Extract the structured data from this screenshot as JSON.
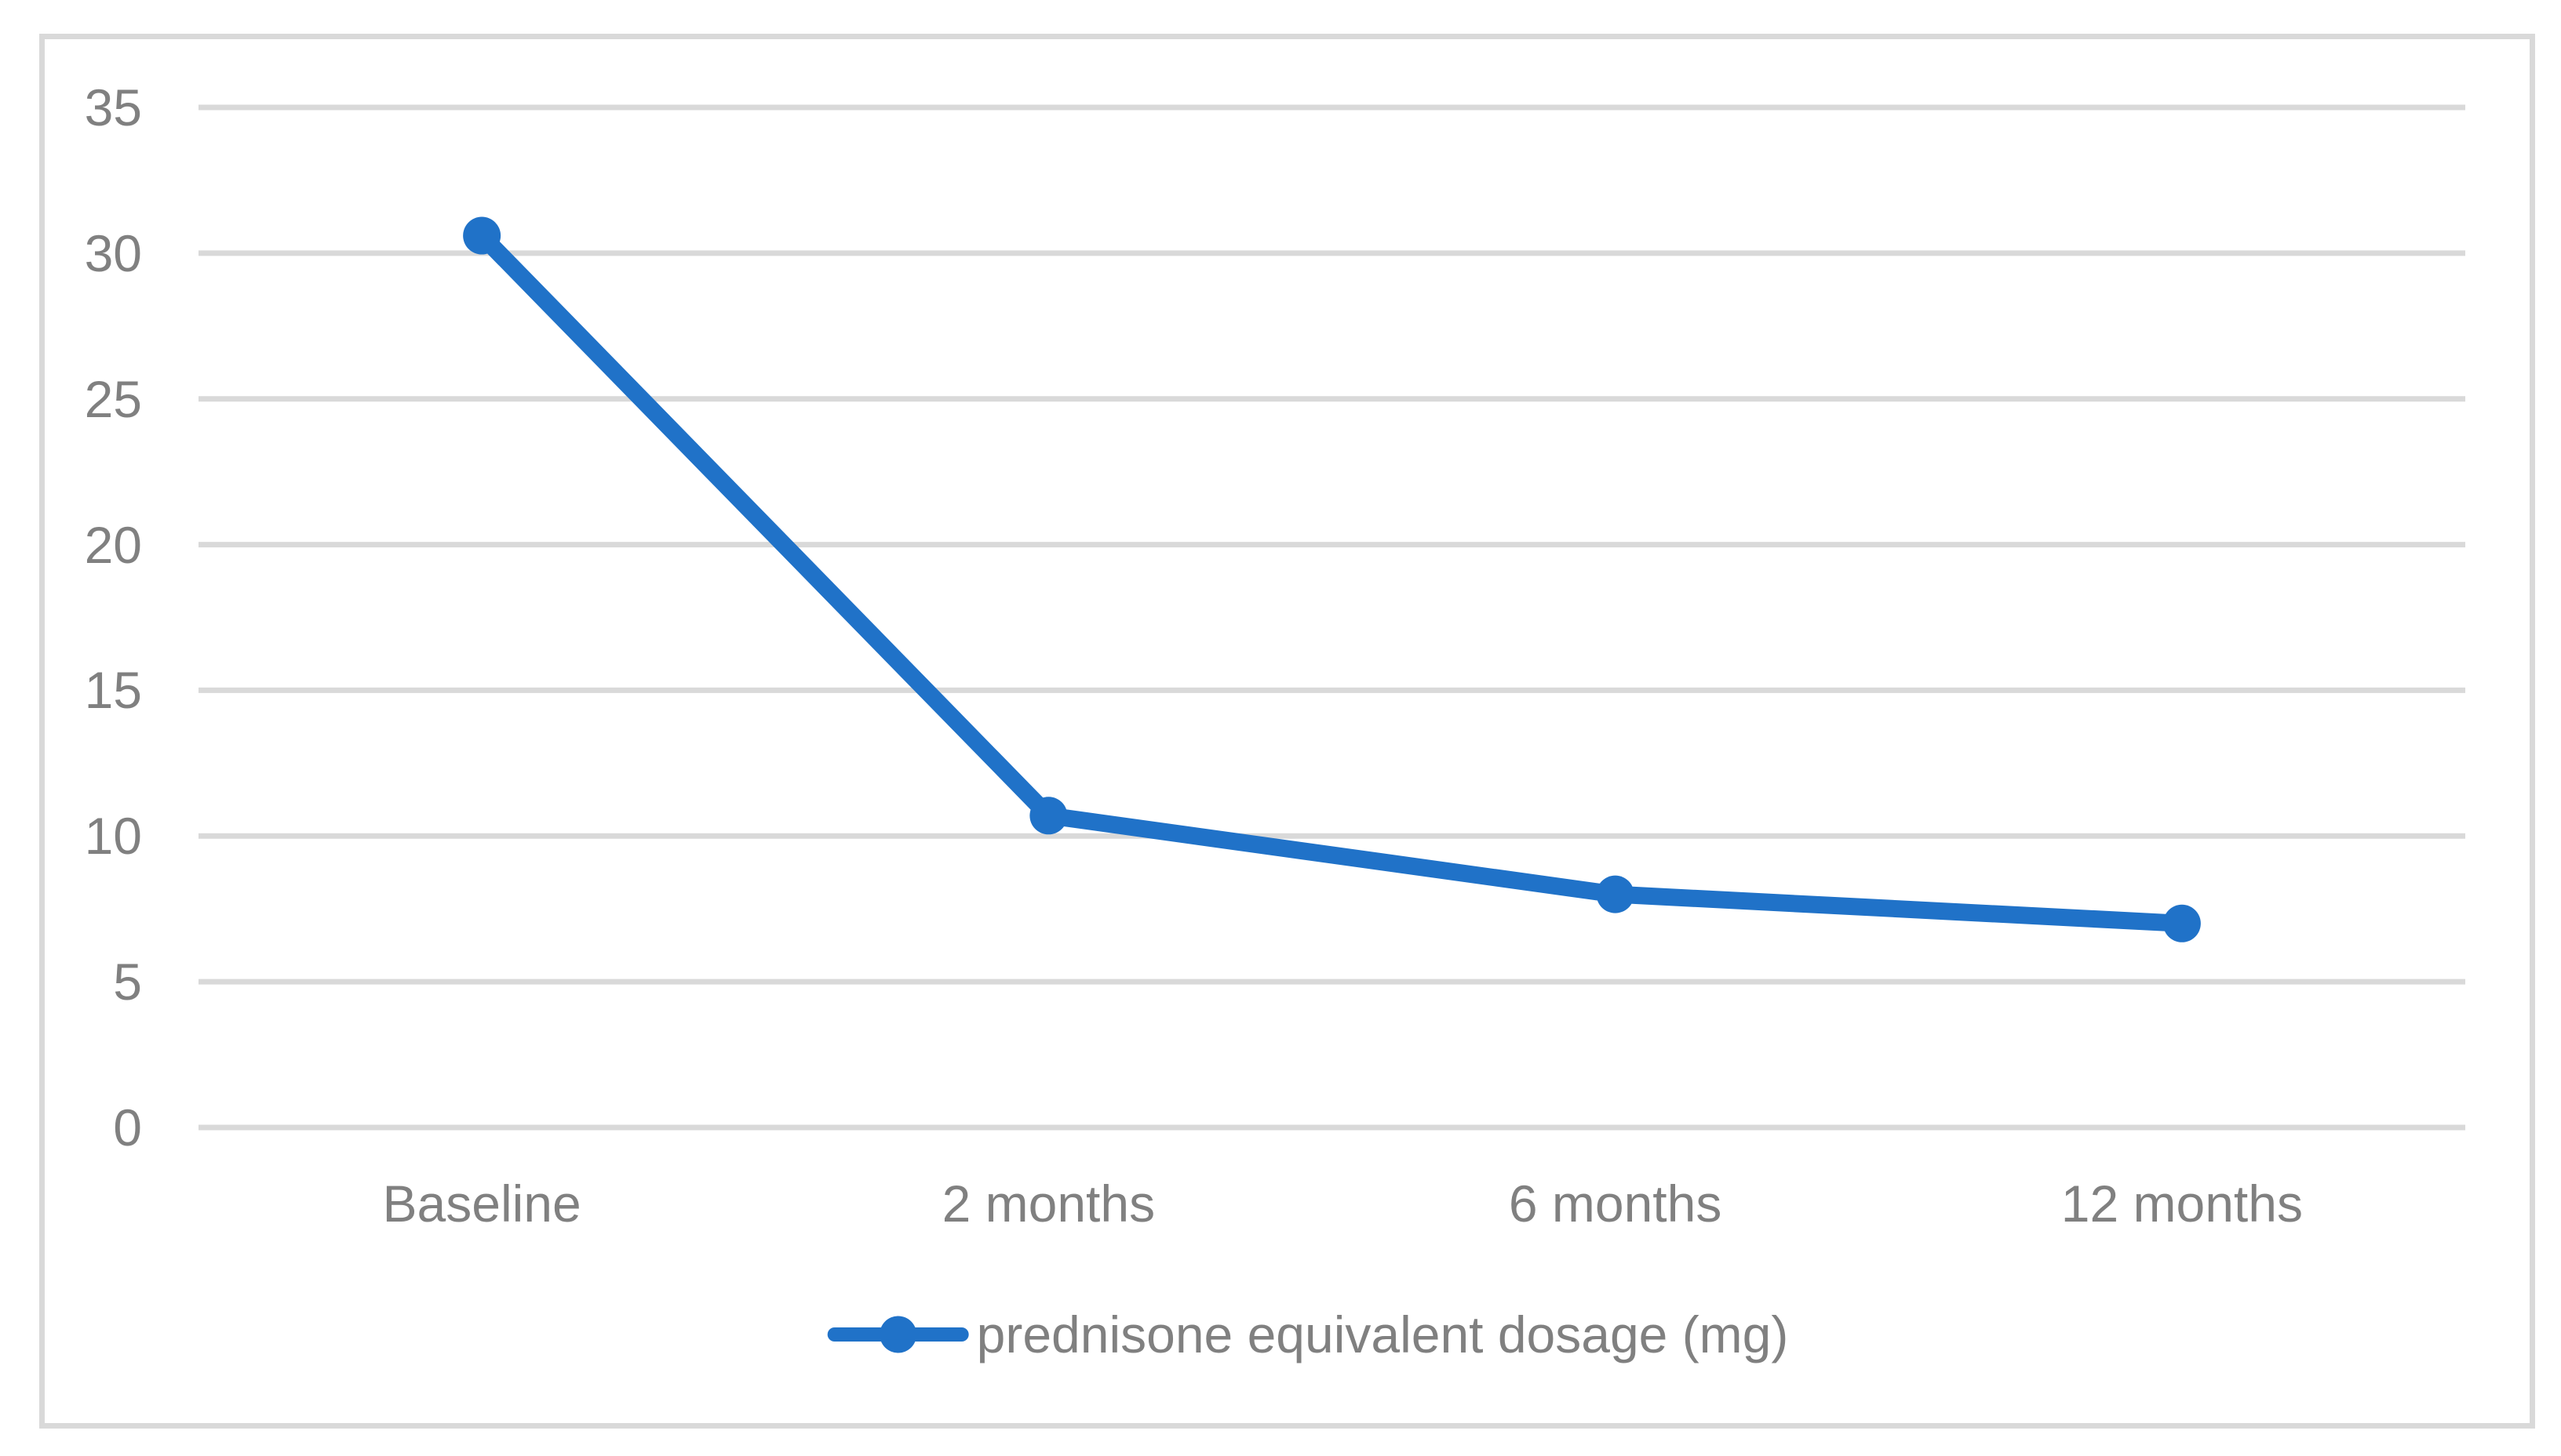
{
  "chart_data": {
    "type": "line",
    "title": "",
    "categories": [
      "Baseline",
      "2 months",
      "6 months",
      "12 months"
    ],
    "series": [
      {
        "name": "prednisone equivalent dosage (mg)",
        "values": [
          30.6,
          10.7,
          8,
          7
        ],
        "color": "#2072C8",
        "marker": "circle"
      }
    ],
    "ylim": [
      0,
      35
    ],
    "yticks": [
      0,
      5,
      10,
      15,
      20,
      25,
      30,
      35
    ],
    "ytick_step": 5,
    "xlabel": "",
    "ylabel": "",
    "grid": "horizontal",
    "legend_position": "bottom-center"
  },
  "colors": {
    "series_blue": "#2072C8",
    "gridline": "#D9D9D9",
    "frame_border": "#D9D9D9",
    "axis_text": "#808080",
    "background": "#FFFFFF"
  }
}
